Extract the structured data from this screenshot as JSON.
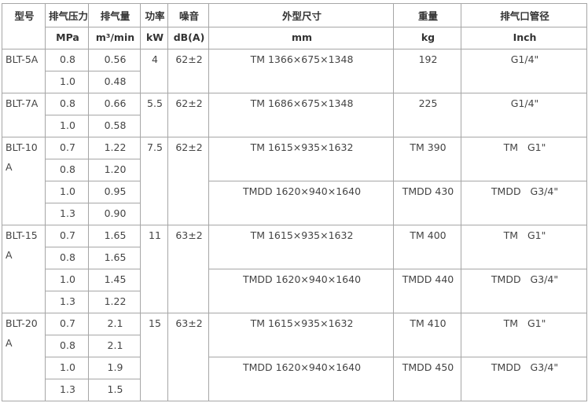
{
  "table": {
    "columns": [
      {
        "title": "型号"
      },
      {
        "title": "排气压力",
        "unit": "MPa"
      },
      {
        "title": "排气量",
        "unit": "m³/min"
      },
      {
        "title": "功率",
        "unit": "kW"
      },
      {
        "title": "噪音",
        "unit": "dB(A)"
      },
      {
        "title": "外型尺寸",
        "unit": "mm"
      },
      {
        "title": "重量",
        "unit": "kg"
      },
      {
        "title": "排气口管径",
        "unit": "Inch"
      }
    ],
    "models": [
      {
        "model": "BLT-5A",
        "power": "4",
        "noise": "62±2",
        "rows": [
          {
            "pressure": "0.8",
            "flow": "0.56"
          },
          {
            "pressure": "1.0",
            "flow": "0.48"
          }
        ],
        "variants": [
          {
            "dimensions": "TM 1366×675×1348",
            "weight": "192",
            "outlet": "G1/4\""
          }
        ]
      },
      {
        "model": "BLT-7A",
        "power": "5.5",
        "noise": "62±2",
        "rows": [
          {
            "pressure": "0.8",
            "flow": "0.66"
          },
          {
            "pressure": "1.0",
            "flow": "0.58"
          }
        ],
        "variants": [
          {
            "dimensions": "TM 1686×675×1348",
            "weight": "225",
            "outlet": "G1/4\""
          }
        ]
      },
      {
        "model": "BLT-10A",
        "power": "7.5",
        "noise": "62±2",
        "rows": [
          {
            "pressure": "0.7",
            "flow": "1.22"
          },
          {
            "pressure": "0.8",
            "flow": "1.20"
          },
          {
            "pressure": "1.0",
            "flow": "0.95"
          },
          {
            "pressure": "1.3",
            "flow": "0.90"
          }
        ],
        "variants": [
          {
            "dimensions": "TM 1615×935×1632",
            "weight": "TM 390",
            "outlet": "TM   G1\""
          },
          {
            "dimensions": "TMDD 1620×940×1640",
            "weight": "TMDD 430",
            "outlet": "TMDD   G3/4\""
          }
        ]
      },
      {
        "model": "BLT-15A",
        "power": "11",
        "noise": "63±2",
        "rows": [
          {
            "pressure": "0.7",
            "flow": "1.65"
          },
          {
            "pressure": "0.8",
            "flow": "1.65"
          },
          {
            "pressure": "1.0",
            "flow": "1.45"
          },
          {
            "pressure": "1.3",
            "flow": "1.22"
          }
        ],
        "variants": [
          {
            "dimensions": "TM 1615×935×1632",
            "weight": "TM 400",
            "outlet": "TM   G1\""
          },
          {
            "dimensions": "TMDD 1620×940×1640",
            "weight": "TMDD 440",
            "outlet": "TMDD   G3/4\""
          }
        ]
      },
      {
        "model": "BLT-20A",
        "power": "15",
        "noise": "63±2",
        "rows": [
          {
            "pressure": "0.7",
            "flow": "2.1"
          },
          {
            "pressure": "0.8",
            "flow": "2.1"
          },
          {
            "pressure": "1.0",
            "flow": "1.9"
          },
          {
            "pressure": "1.3",
            "flow": "1.5"
          }
        ],
        "variants": [
          {
            "dimensions": "TM 1615×935×1632",
            "weight": "TM 410",
            "outlet": "TM   G1\""
          },
          {
            "dimensions": "TMDD 1620×940×1640",
            "weight": "TMDD 450",
            "outlet": "TMDD   G3/4\""
          }
        ]
      }
    ]
  }
}
